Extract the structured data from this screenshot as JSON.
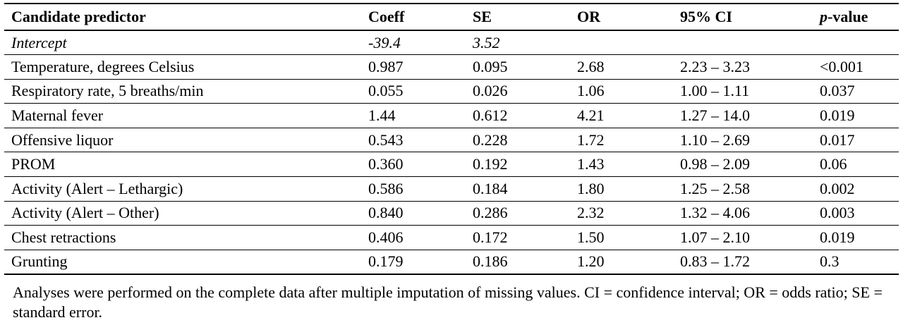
{
  "table": {
    "headers": {
      "predictor": "Candidate predictor",
      "coeff": "Coeff",
      "se": "SE",
      "or": "OR",
      "ci": "95% CI",
      "p_italic": "p",
      "p_rest": "-value"
    },
    "rows": [
      {
        "predictor": "Intercept",
        "coeff": "-39.4",
        "se": "3.52",
        "or": "",
        "ci": "",
        "p": ""
      },
      {
        "predictor": "Temperature, degrees Celsius",
        "coeff": "0.987",
        "se": "0.095",
        "or": "2.68",
        "ci": "2.23 – 3.23",
        "p": "<0.001"
      },
      {
        "predictor": "Respiratory rate, 5 breaths/min",
        "coeff": "0.055",
        "se": "0.026",
        "or": "1.06",
        "ci": "1.00 – 1.11",
        "p": "0.037"
      },
      {
        "predictor": "Maternal fever",
        "coeff": "1.44",
        "se": "0.612",
        "or": "4.21",
        "ci": "1.27 – 14.0",
        "p": "0.019"
      },
      {
        "predictor": "Offensive liquor",
        "coeff": "0.543",
        "se": "0.228",
        "or": "1.72",
        "ci": "1.10 – 2.69",
        "p": "0.017"
      },
      {
        "predictor": "PROM",
        "coeff": "0.360",
        "se": "0.192",
        "or": "1.43",
        "ci": "0.98 – 2.09",
        "p": "0.06"
      },
      {
        "predictor": "Activity (Alert – Lethargic)",
        "coeff": "0.586",
        "se": "0.184",
        "or": "1.80",
        "ci": "1.25 – 2.58",
        "p": "0.002"
      },
      {
        "predictor": "Activity (Alert – Other)",
        "coeff": "0.840",
        "se": "0.286",
        "or": "2.32",
        "ci": "1.32 – 4.06",
        "p": "0.003"
      },
      {
        "predictor": "Chest retractions",
        "coeff": "0.406",
        "se": "0.172",
        "or": "1.50",
        "ci": "1.07 – 2.10",
        "p": "0.019"
      },
      {
        "predictor": "Grunting",
        "coeff": "0.179",
        "se": "0.186",
        "or": "1.20",
        "ci": "0.83 – 1.72",
        "p": "0.3"
      }
    ]
  },
  "footnote": "Analyses were performed on the complete data after multiple imputation of missing values. CI = confidence interval; OR = odds ratio; SE = standard error."
}
